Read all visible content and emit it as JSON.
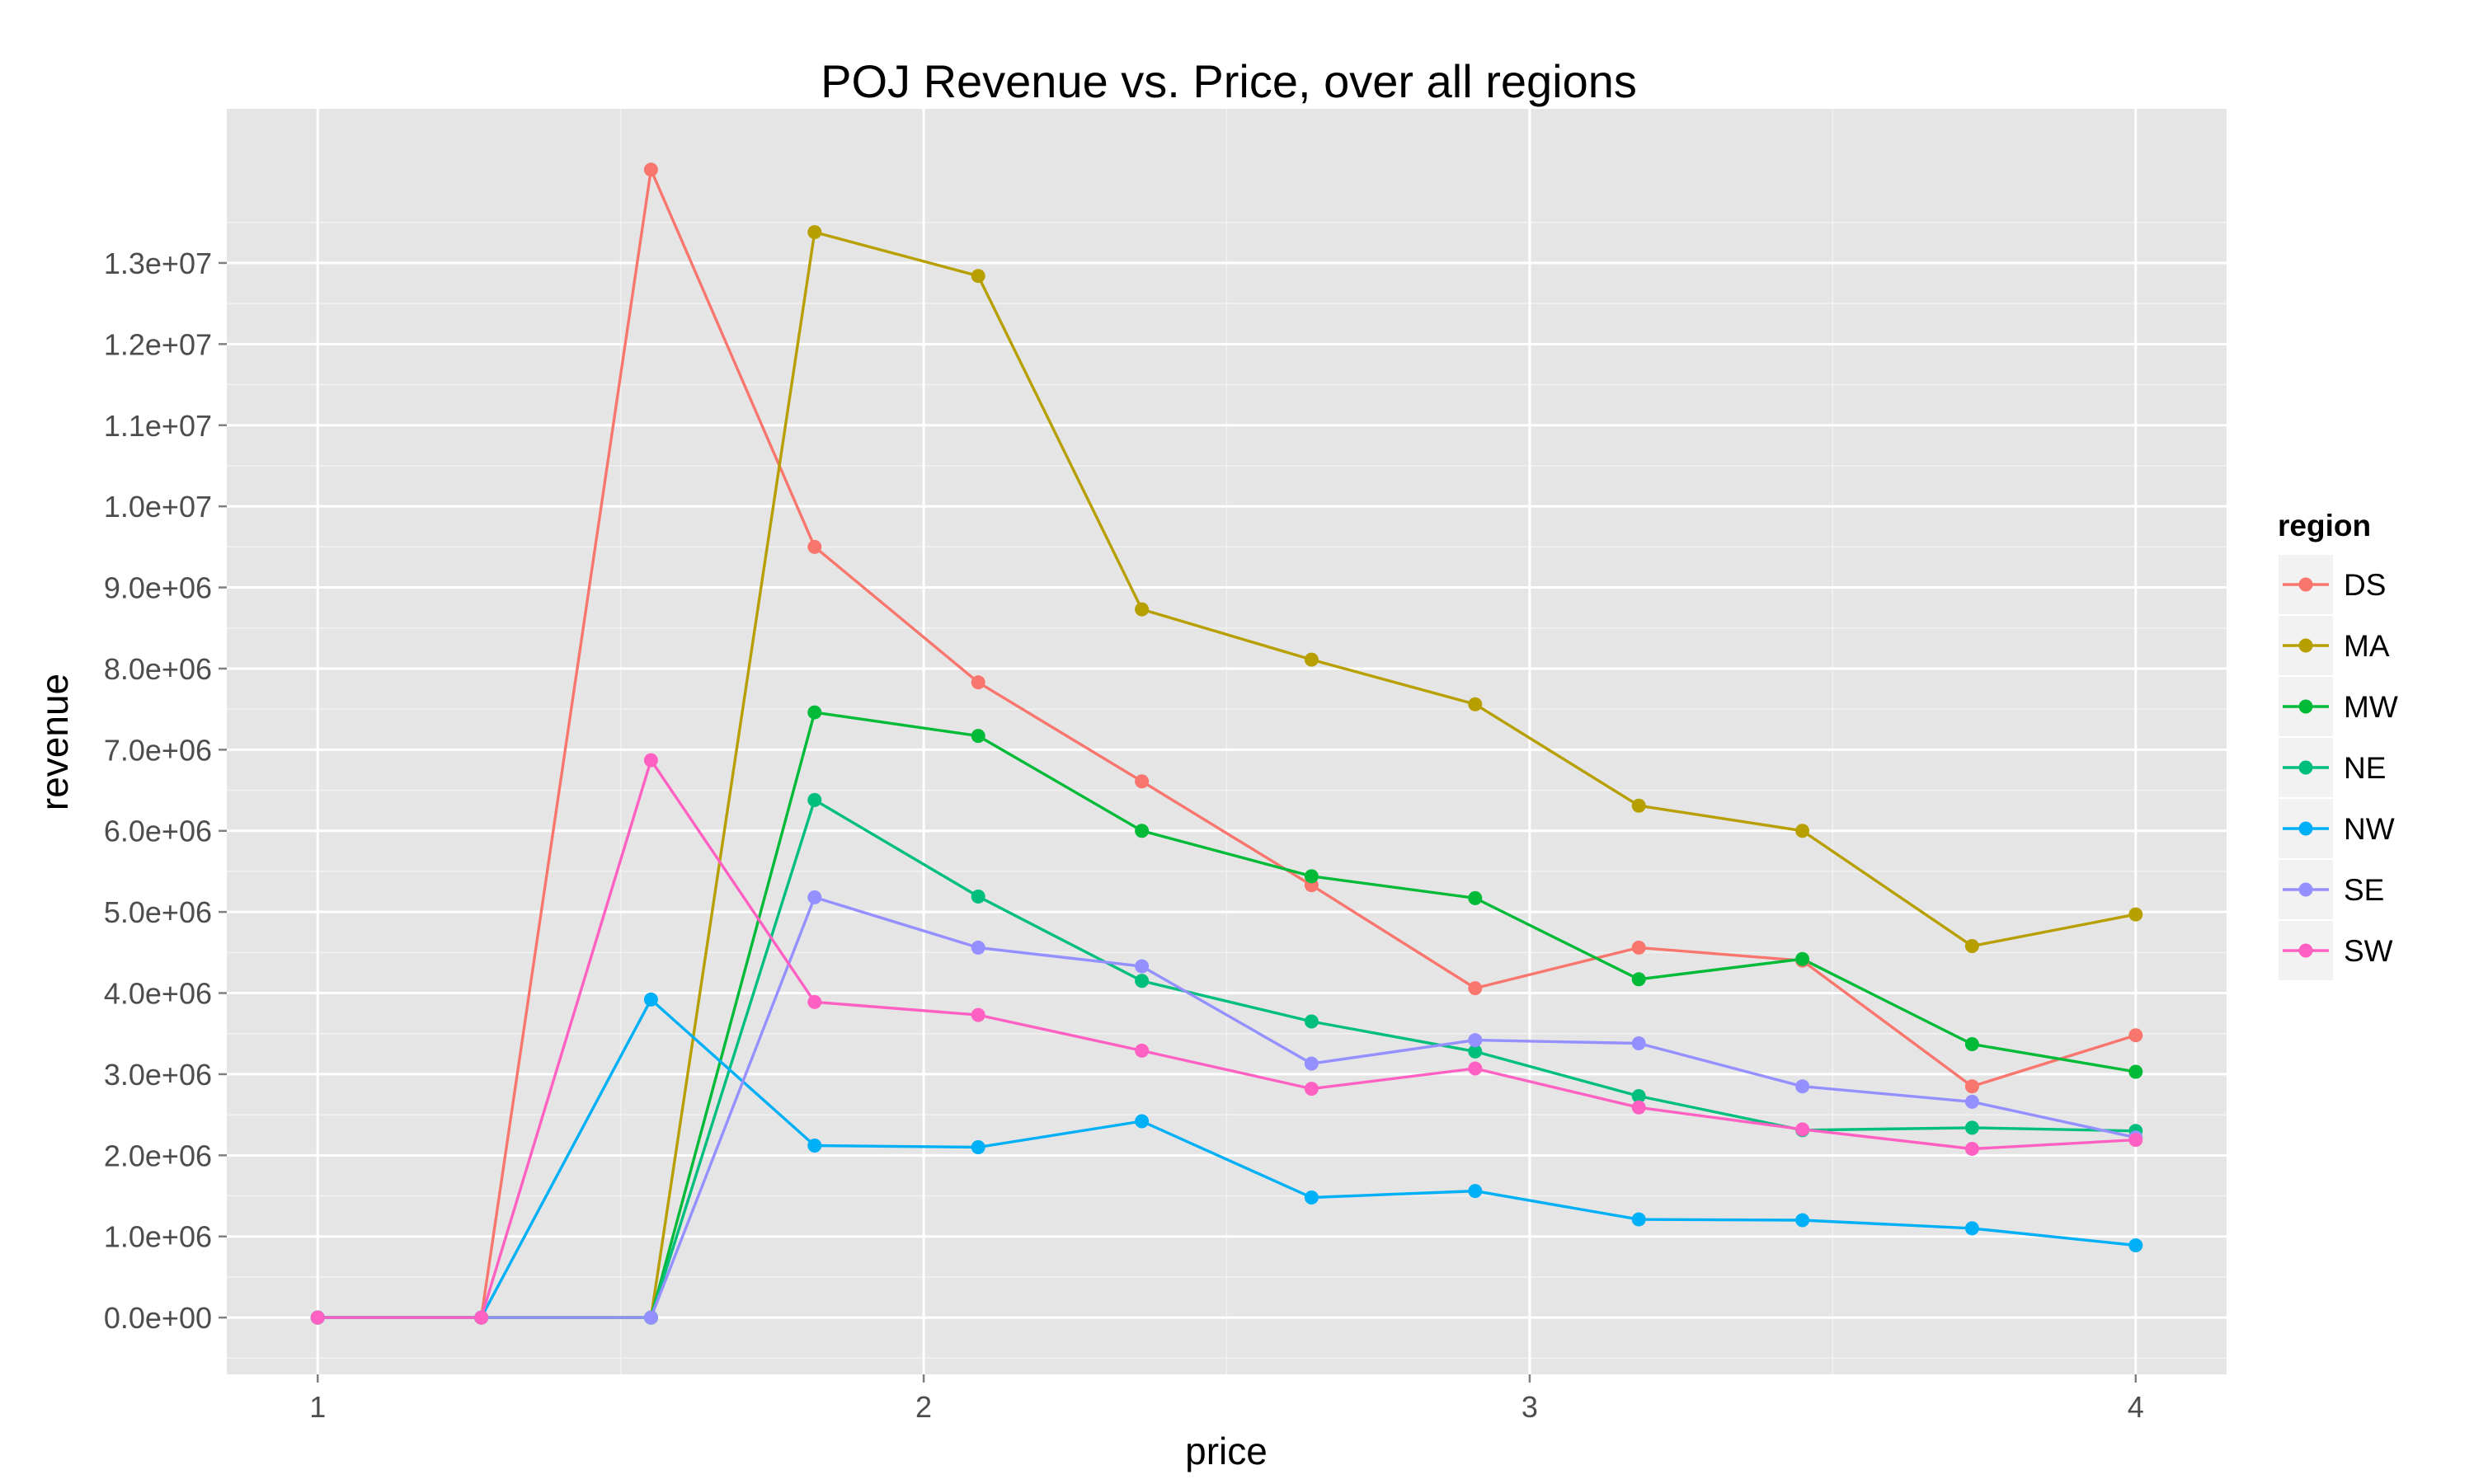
{
  "chart_data": {
    "type": "line",
    "title": "POJ Revenue vs. Price, over all regions",
    "xlabel": "price",
    "ylabel": "revenue",
    "xlim": [
      0.85,
      4.15
    ],
    "ylim": [
      -700000,
      14900000
    ],
    "x_ticks": [
      1,
      2,
      3,
      4
    ],
    "x_tick_labels": [
      "1",
      "2",
      "3",
      "4"
    ],
    "y_ticks": [
      0,
      1000000,
      2000000,
      3000000,
      4000000,
      5000000,
      6000000,
      7000000,
      8000000,
      9000000,
      10000000,
      11000000,
      12000000,
      13000000
    ],
    "y_tick_labels": [
      "0.0e+00",
      "1.0e+06",
      "2.0e+06",
      "3.0e+06",
      "4.0e+06",
      "5.0e+06",
      "6.0e+06",
      "7.0e+06",
      "8.0e+06",
      "9.0e+06",
      "1.0e+07",
      "1.1e+07",
      "1.2e+07",
      "1.3e+07"
    ],
    "grid": true,
    "legend": {
      "title": "region",
      "position": "right"
    },
    "x": [
      1.0,
      1.27,
      1.55,
      1.82,
      2.09,
      2.36,
      2.64,
      2.91,
      3.18,
      3.45,
      3.73,
      4.0
    ],
    "series": [
      {
        "name": "DS",
        "color": "#F8766D",
        "values": [
          0,
          0,
          14150000,
          9500000,
          7830000,
          6610000,
          5330000,
          4060000,
          4560000,
          4400000,
          2850000,
          3480000
        ]
      },
      {
        "name": "MA",
        "color": "#B79F00",
        "values": [
          0,
          0,
          0,
          13380000,
          12840000,
          8730000,
          8110000,
          7560000,
          6310000,
          6000000,
          4580000,
          4970000
        ]
      },
      {
        "name": "MW",
        "color": "#00BA38",
        "values": [
          0,
          0,
          0,
          7460000,
          7170000,
          6000000,
          5440000,
          5170000,
          4170000,
          4420000,
          3370000,
          3030000
        ]
      },
      {
        "name": "NE",
        "color": "#00BF7D",
        "values": [
          0,
          0,
          0,
          6380000,
          5190000,
          4150000,
          3650000,
          3280000,
          2730000,
          2310000,
          2340000,
          2300000
        ]
      },
      {
        "name": "NW",
        "color": "#00B0F6",
        "values": [
          0,
          0,
          3920000,
          2120000,
          2100000,
          2420000,
          1480000,
          1560000,
          1210000,
          1200000,
          1100000,
          890000
        ]
      },
      {
        "name": "SE",
        "color": "#9590FF",
        "values": [
          0,
          0,
          0,
          5180000,
          4560000,
          4330000,
          3130000,
          3420000,
          3380000,
          2850000,
          2660000,
          2220000
        ]
      },
      {
        "name": "SW",
        "color": "#FF61C3",
        "values": [
          0,
          0,
          6870000,
          3890000,
          3730000,
          3290000,
          2820000,
          3070000,
          2590000,
          2320000,
          2080000,
          2190000
        ]
      }
    ]
  }
}
